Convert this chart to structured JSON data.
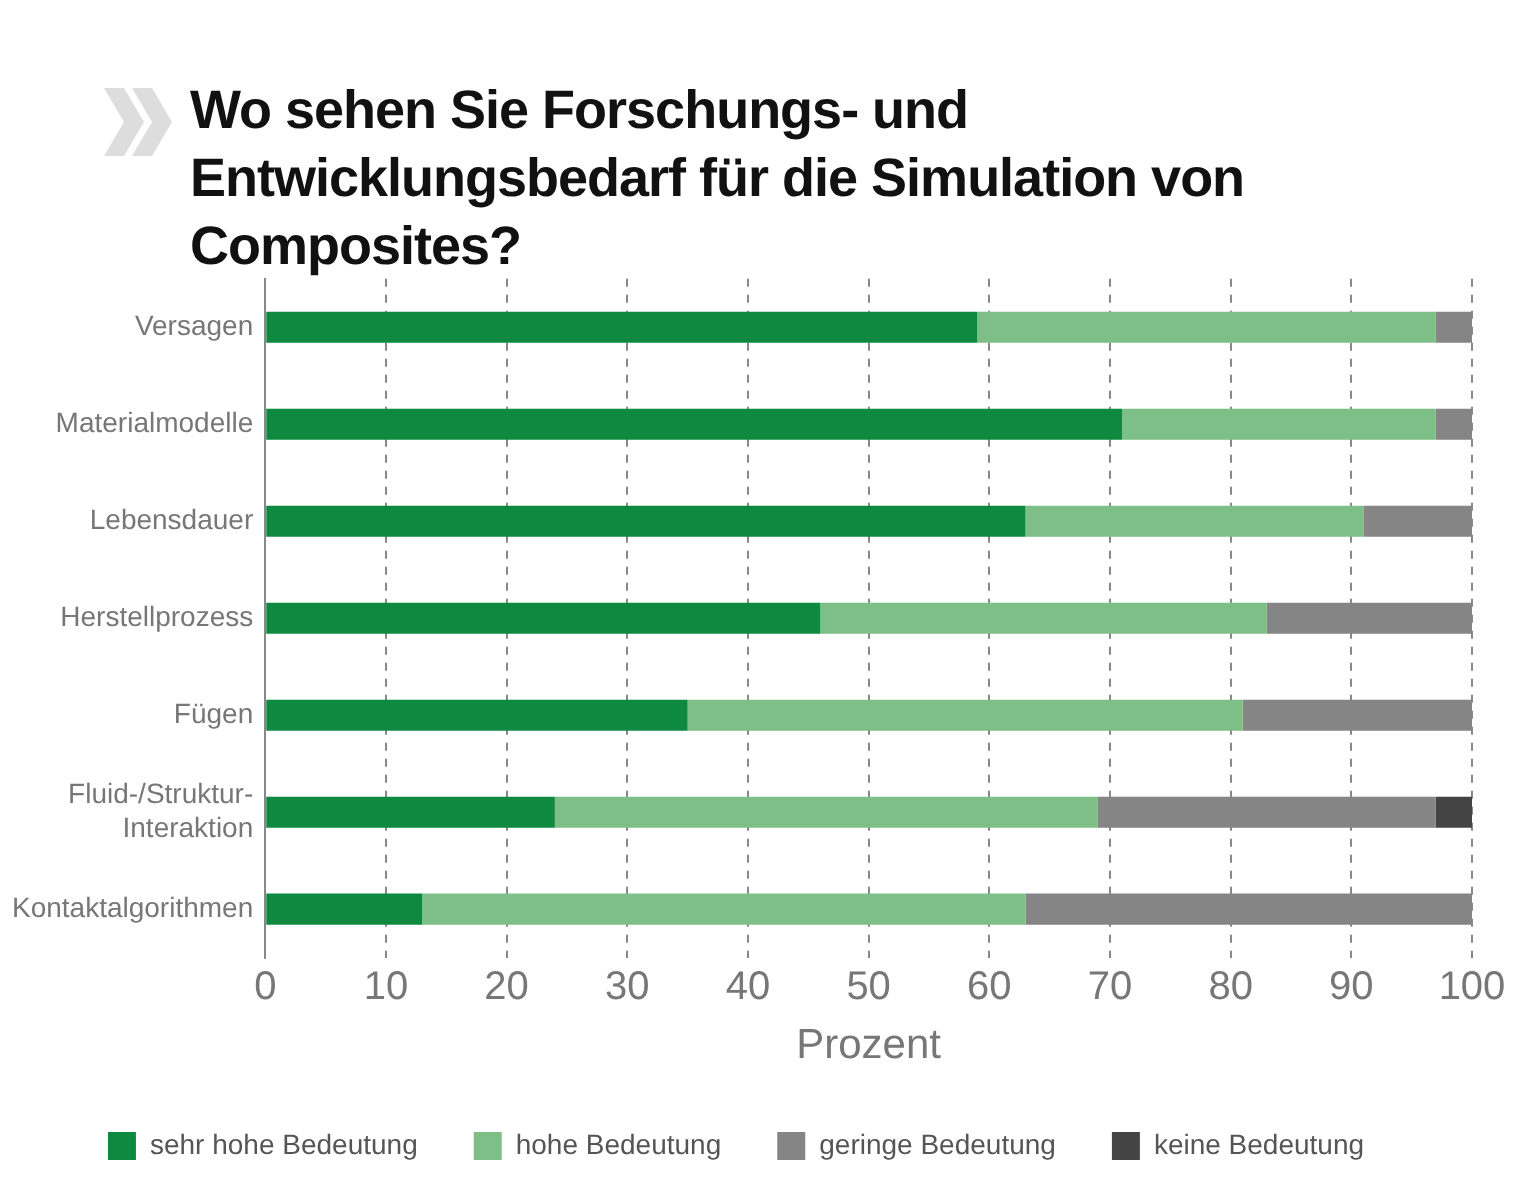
{
  "chart_data": {
    "type": "bar",
    "orientation": "horizontal",
    "stacked": true,
    "title": "Wo sehen Sie Forschungs- und Entwicklungsbedarf für die Simulation von Composites?",
    "xlabel": "Prozent",
    "categories": [
      "Versagen",
      "Materialmodelle",
      "Lebensdauer",
      "Herstellprozess",
      "Fügen",
      "Fluid-/Struktur-Interaktion",
      "Kontaktalgorithmen"
    ],
    "series": [
      {
        "name": "sehr hohe Bedeutung",
        "color": "#0d8a3f",
        "values": [
          59,
          71,
          63,
          46,
          35,
          24,
          13
        ]
      },
      {
        "name": "hohe Bedeutung",
        "color": "#7dbf86",
        "values": [
          38,
          26,
          28,
          37,
          46,
          45,
          50
        ]
      },
      {
        "name": "geringe Bedeutung",
        "color": "#858585",
        "values": [
          3,
          3,
          9,
          17,
          19,
          28,
          37
        ]
      },
      {
        "name": "keine Bedeutung",
        "color": "#444444",
        "values": [
          0,
          0,
          0,
          0,
          0,
          3,
          0
        ]
      }
    ],
    "xlim": [
      0,
      100
    ],
    "xticks": [
      0,
      10,
      20,
      30,
      40,
      50,
      60,
      70,
      80,
      90,
      100
    ],
    "grid": "x",
    "legend": "bottom"
  }
}
